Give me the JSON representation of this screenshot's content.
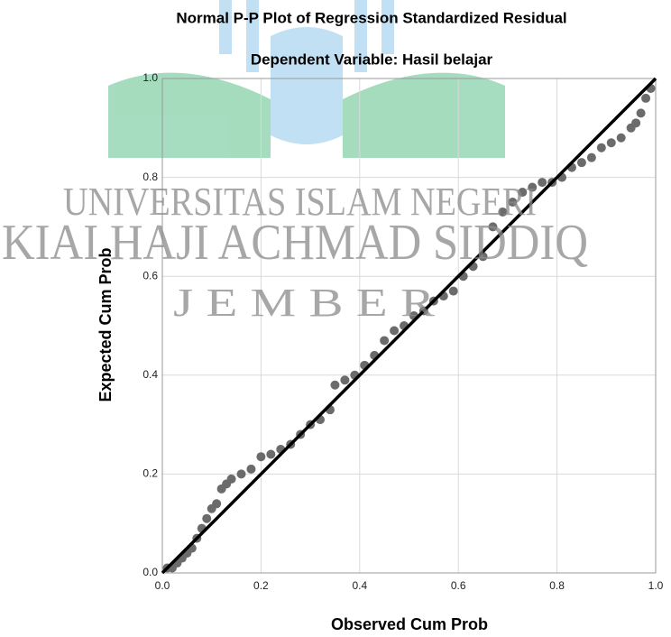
{
  "chart_data": {
    "type": "scatter",
    "title": "Normal P-P Plot of Regression Standardized Residual",
    "subtitle": "Dependent Variable: Hasil belajar",
    "xlabel": "Observed Cum Prob",
    "ylabel": "Expected Cum Prob",
    "watermark": [
      "UNIVERSITAS ISLAM NEGERI",
      "KIAI HAJI ACHMAD SIDDIQ",
      "J E M B E R"
    ],
    "xlim": [
      0,
      1
    ],
    "ylim": [
      0,
      1
    ],
    "xticks": [
      {
        "value": 0,
        "label": "0.0"
      },
      0.2,
      0.4,
      0.6,
      0.8,
      {
        "value": 1,
        "label": "1.0"
      }
    ],
    "yticks": [
      {
        "value": 0,
        "label": "0.0"
      },
      0.2,
      0.4,
      0.6,
      0.8,
      {
        "value": 1,
        "label": "1.0"
      }
    ],
    "grid": true,
    "color": "#6b6b6b",
    "x": [
      0.01,
      0.02,
      0.03,
      0.04,
      0.05,
      0.06,
      0.07,
      0.08,
      0.09,
      0.1,
      0.11,
      0.12,
      0.13,
      0.14,
      0.16,
      0.18,
      0.2,
      0.22,
      0.24,
      0.26,
      0.28,
      0.3,
      0.32,
      0.34,
      0.35,
      0.37,
      0.39,
      0.41,
      0.43,
      0.45,
      0.47,
      0.49,
      0.51,
      0.53,
      0.55,
      0.57,
      0.59,
      0.61,
      0.63,
      0.65,
      0.67,
      0.69,
      0.71,
      0.73,
      0.75,
      0.77,
      0.79,
      0.81,
      0.83,
      0.85,
      0.87,
      0.89,
      0.91,
      0.93,
      0.95,
      0.96,
      0.97,
      0.98,
      0.99
    ],
    "y": [
      0.01,
      0.01,
      0.02,
      0.03,
      0.04,
      0.05,
      0.07,
      0.09,
      0.11,
      0.13,
      0.14,
      0.17,
      0.18,
      0.19,
      0.2,
      0.21,
      0.235,
      0.24,
      0.25,
      0.26,
      0.28,
      0.3,
      0.31,
      0.33,
      0.38,
      0.39,
      0.4,
      0.42,
      0.44,
      0.47,
      0.49,
      0.5,
      0.52,
      0.53,
      0.55,
      0.56,
      0.57,
      0.6,
      0.62,
      0.64,
      0.7,
      0.73,
      0.75,
      0.77,
      0.78,
      0.79,
      0.79,
      0.8,
      0.82,
      0.83,
      0.84,
      0.86,
      0.87,
      0.88,
      0.9,
      0.91,
      0.93,
      0.96,
      0.98
    ],
    "reference_line": {
      "color": "#000000",
      "x": [
        0,
        1
      ],
      "y": [
        0,
        1
      ]
    }
  }
}
